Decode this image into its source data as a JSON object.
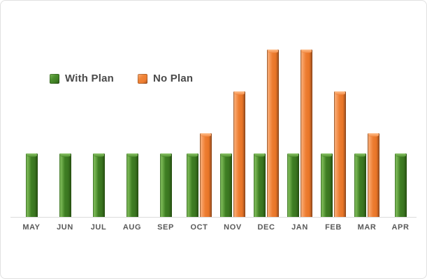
{
  "chart_data": {
    "type": "bar",
    "title": "",
    "xlabel": "",
    "ylabel": "",
    "categories": [
      "MAY",
      "JUN",
      "JUL",
      "AUG",
      "SEP",
      "OCT",
      "NOV",
      "DEC",
      "JAN",
      "FEB",
      "MAR",
      "APR"
    ],
    "series": [
      {
        "name": "With Plan",
        "color": "#3F7E23",
        "values": [
          38,
          38,
          38,
          38,
          38,
          38,
          38,
          38,
          38,
          38,
          38,
          38
        ]
      },
      {
        "name": "No Plan",
        "color": "#ED7D31",
        "values": [
          0,
          0,
          0,
          0,
          0,
          50,
          75,
          100,
          100,
          75,
          50,
          0
        ]
      }
    ],
    "ylim": [
      0,
      129
    ],
    "grid": false,
    "y_axis_visible": false,
    "legend_position": "inside-upper-left"
  },
  "colors": {
    "axis_line": "#DBDBDB",
    "frame_border": "#E0E0E0",
    "x_label_text": "#595959",
    "legend_text": "#4A4A4A"
  }
}
